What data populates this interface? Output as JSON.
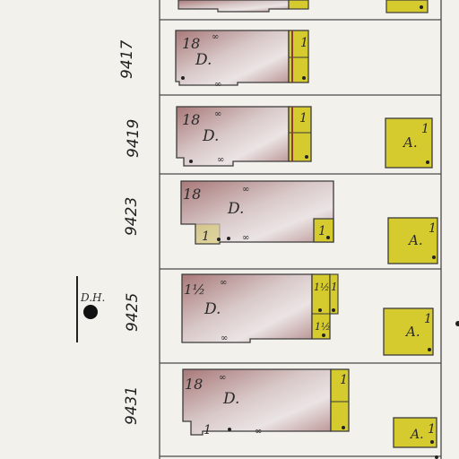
{
  "lots": [
    {
      "id": "9417",
      "label": "9417",
      "house": {
        "stories": "18",
        "type": "D."
      },
      "porch": {
        "label": "1"
      },
      "garage": null
    },
    {
      "id": "9419",
      "label": "9419",
      "house": {
        "stories": "18",
        "type": "D."
      },
      "porch": {
        "label": "1"
      },
      "garage": {
        "type": "A.",
        "stories": "1"
      }
    },
    {
      "id": "9423",
      "label": "9423",
      "house": {
        "stories": "18",
        "type": "D."
      },
      "porch": {
        "label": "1"
      },
      "rear_porch": {
        "label": "1"
      },
      "garage": {
        "type": "A.",
        "stories": "1"
      }
    },
    {
      "id": "9425",
      "label": "9425",
      "house": {
        "stories": "1½",
        "type": "D."
      },
      "porch": {
        "label": "1½"
      },
      "porch_extra": {
        "label": "1"
      },
      "garage": {
        "type": "A.",
        "stories": "1"
      }
    },
    {
      "id": "9431",
      "label": "9431",
      "house": {
        "stories": "18",
        "type": "D."
      },
      "porch": {
        "label": "1"
      },
      "rear_porch": {
        "label": "1"
      },
      "garage": {
        "type": "A.",
        "stories": "1"
      }
    }
  ],
  "hydrant": {
    "label": "D.H."
  },
  "colors": {
    "dwelling": "#b08686",
    "dwelling_light": "#e6dede",
    "porch": "#d6cb2e",
    "outline": "#3b3b3b",
    "paper": "#f3f1ec"
  }
}
